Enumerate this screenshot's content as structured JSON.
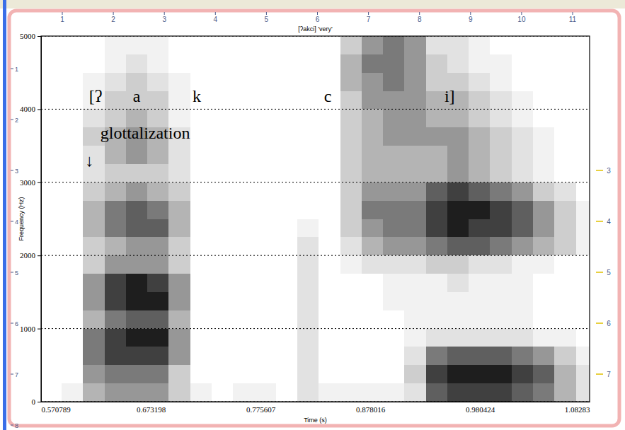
{
  "chart_data": {
    "type": "heatmap",
    "title": "[ʔakci] 'very'",
    "x_label": "Time (s)",
    "y_label": "Frequency (Hz)",
    "xlim": [
      0.570789,
      1.08283
    ],
    "ylim": [
      0,
      5000
    ],
    "xticks": [
      0.570789,
      0.673198,
      0.775607,
      0.878016,
      0.980424,
      1.08283
    ],
    "yticks": [
      0,
      1000,
      2000,
      3000,
      4000,
      5000
    ],
    "grid": "y",
    "x_bins": [
      0.57,
      0.59,
      0.61,
      0.63,
      0.65,
      0.67,
      0.69,
      0.71,
      0.73,
      0.75,
      0.77,
      0.79,
      0.81,
      0.83,
      0.85,
      0.87,
      0.89,
      0.91,
      0.93,
      0.95,
      0.97,
      0.99,
      1.01,
      1.03,
      1.05,
      1.07,
      1.09
    ],
    "y_bins": [
      0,
      250,
      500,
      750,
      1000,
      1250,
      1500,
      1750,
      2000,
      2250,
      2500,
      2750,
      3000,
      3250,
      3500,
      3750,
      4000,
      4250,
      4500,
      4750,
      5000
    ],
    "zlim": [
      0,
      9
    ],
    "values": [
      [
        0,
        1,
        4,
        5,
        5,
        5,
        3,
        1,
        0,
        1,
        1,
        0,
        2,
        1,
        1,
        1,
        1,
        2,
        7,
        8,
        8,
        8,
        7,
        6,
        4,
        2
      ],
      [
        0,
        0,
        5,
        6,
        6,
        6,
        3,
        0,
        0,
        0,
        0,
        0,
        2,
        0,
        0,
        0,
        0,
        3,
        8,
        9,
        9,
        9,
        8,
        7,
        4,
        2
      ],
      [
        0,
        0,
        6,
        8,
        8,
        8,
        5,
        0,
        0,
        0,
        0,
        0,
        2,
        0,
        0,
        0,
        0,
        2,
        6,
        7,
        7,
        7,
        6,
        5,
        3,
        1
      ],
      [
        0,
        0,
        6,
        8,
        9,
        9,
        5,
        0,
        0,
        0,
        0,
        0,
        2,
        0,
        0,
        0,
        0,
        1,
        2,
        2,
        2,
        2,
        2,
        1,
        1,
        0
      ],
      [
        0,
        0,
        4,
        6,
        7,
        7,
        4,
        0,
        0,
        0,
        0,
        0,
        2,
        0,
        0,
        0,
        0,
        1,
        1,
        1,
        1,
        1,
        1,
        0,
        0,
        0
      ],
      [
        0,
        0,
        5,
        8,
        9,
        9,
        5,
        0,
        0,
        0,
        0,
        0,
        2,
        0,
        0,
        0,
        1,
        1,
        1,
        1,
        1,
        1,
        1,
        0,
        0,
        0
      ],
      [
        0,
        0,
        5,
        8,
        9,
        8,
        5,
        0,
        0,
        0,
        0,
        0,
        2,
        0,
        0,
        0,
        1,
        1,
        1,
        2,
        1,
        1,
        1,
        0,
        0,
        0
      ],
      [
        0,
        0,
        3,
        5,
        5,
        5,
        3,
        0,
        0,
        0,
        0,
        0,
        2,
        0,
        1,
        2,
        2,
        2,
        3,
        3,
        2,
        2,
        1,
        1,
        0,
        0
      ],
      [
        0,
        0,
        3,
        4,
        5,
        5,
        3,
        0,
        0,
        0,
        0,
        0,
        2,
        0,
        2,
        4,
        5,
        5,
        6,
        7,
        7,
        6,
        5,
        4,
        3,
        1
      ],
      [
        0,
        0,
        4,
        6,
        7,
        7,
        4,
        0,
        0,
        0,
        0,
        0,
        1,
        0,
        3,
        5,
        6,
        6,
        8,
        9,
        8,
        8,
        7,
        5,
        3,
        1
      ],
      [
        0,
        0,
        4,
        6,
        7,
        6,
        4,
        0,
        0,
        0,
        0,
        0,
        0,
        0,
        3,
        6,
        6,
        6,
        8,
        9,
        9,
        8,
        7,
        5,
        3,
        1
      ],
      [
        0,
        0,
        3,
        4,
        5,
        4,
        3,
        0,
        0,
        0,
        0,
        0,
        0,
        0,
        3,
        5,
        5,
        5,
        7,
        8,
        7,
        6,
        5,
        3,
        2,
        0
      ],
      [
        0,
        0,
        2,
        3,
        3,
        3,
        2,
        0,
        0,
        0,
        0,
        0,
        0,
        0,
        3,
        4,
        4,
        4,
        4,
        5,
        4,
        3,
        2,
        1,
        0,
        0
      ],
      [
        0,
        0,
        2,
        4,
        5,
        4,
        2,
        0,
        0,
        0,
        0,
        0,
        0,
        0,
        3,
        4,
        4,
        4,
        4,
        5,
        4,
        3,
        2,
        1,
        0,
        0
      ],
      [
        0,
        0,
        3,
        4,
        5,
        4,
        2,
        0,
        0,
        0,
        0,
        0,
        0,
        0,
        3,
        4,
        5,
        5,
        5,
        5,
        4,
        3,
        2,
        1,
        0,
        0
      ],
      [
        0,
        0,
        2,
        3,
        4,
        3,
        1,
        0,
        0,
        0,
        0,
        0,
        0,
        0,
        3,
        4,
        5,
        5,
        4,
        4,
        3,
        2,
        1,
        0,
        0,
        0
      ],
      [
        0,
        0,
        1,
        3,
        3,
        3,
        1,
        0,
        0,
        0,
        0,
        0,
        0,
        0,
        3,
        5,
        5,
        5,
        4,
        4,
        3,
        2,
        1,
        0,
        0,
        0
      ],
      [
        0,
        0,
        1,
        2,
        3,
        2,
        1,
        0,
        0,
        0,
        0,
        0,
        0,
        0,
        4,
        5,
        6,
        5,
        3,
        3,
        2,
        1,
        0,
        0,
        0,
        0
      ],
      [
        0,
        0,
        0,
        1,
        2,
        1,
        0,
        0,
        0,
        0,
        0,
        0,
        0,
        0,
        4,
        6,
        6,
        5,
        3,
        2,
        1,
        1,
        0,
        0,
        0,
        0
      ],
      [
        0,
        0,
        0,
        1,
        1,
        1,
        0,
        0,
        0,
        0,
        0,
        0,
        0,
        0,
        3,
        5,
        6,
        5,
        2,
        2,
        1,
        0,
        0,
        0,
        0,
        0
      ]
    ],
    "annotations": [
      {
        "text": "[ʔ",
        "x": 0.6217,
        "y": 4150
      },
      {
        "text": "a",
        "x": 0.66,
        "y": 4150
      },
      {
        "text": "k",
        "x": 0.7162,
        "y": 4150
      },
      {
        "text": "c",
        "x": 0.8385,
        "y": 4150
      },
      {
        "text": "i]",
        "x": 0.9522,
        "y": 4150
      },
      {
        "text": "glottalization",
        "x": 0.668,
        "y": 3650
      },
      {
        "text": "↓",
        "x": 0.616,
        "y": 3270
      }
    ]
  },
  "window": {
    "ruler_top": [
      1,
      2,
      3,
      4,
      5,
      6,
      7,
      8,
      9,
      10,
      11
    ],
    "ruler_left": [
      1,
      2,
      3,
      4,
      5,
      6,
      7,
      8
    ],
    "ruler_right": [
      3,
      4,
      5,
      6,
      7
    ]
  }
}
